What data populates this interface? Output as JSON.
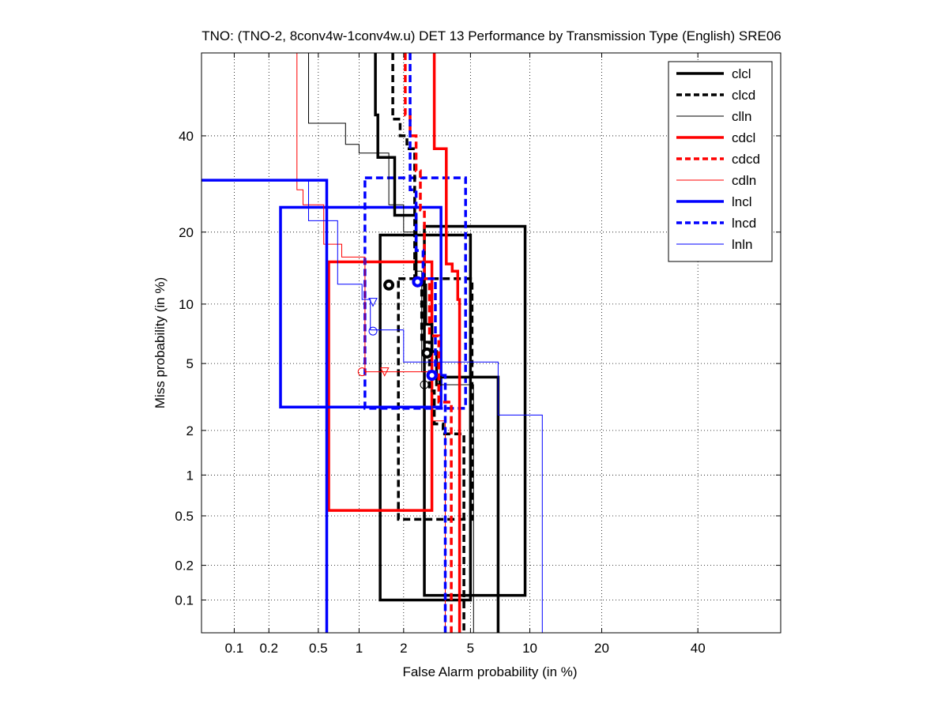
{
  "chart_data": {
    "type": "line",
    "title": "TNO: (TNO-2, 8conv4w-1conv4w.u) DET 13 Performance by Transmission Type (English) SRE06",
    "xlabel": "False Alarm probability (in %)",
    "ylabel": "Miss probability (in %)",
    "scale": "normal-deviate (probit)",
    "xlim": [
      0.05,
      60
    ],
    "ylim": [
      0.05,
      60
    ],
    "x_ticks": [
      0.1,
      0.2,
      0.5,
      1,
      2,
      5,
      10,
      20,
      40
    ],
    "x_tick_labels": [
      "0.1",
      "0.2",
      "0.5",
      "1",
      "2",
      "5",
      "10",
      "20",
      "40"
    ],
    "y_ticks": [
      0.1,
      0.2,
      0.5,
      1,
      2,
      5,
      10,
      20,
      40
    ],
    "y_tick_labels": [
      "0.1",
      "0.2",
      "0.5",
      "1",
      "2",
      "5",
      "10",
      "20",
      "40"
    ],
    "grid": true,
    "legend_position": "top-right",
    "series": [
      {
        "name": "clcl",
        "color": "#000000",
        "style": "solid",
        "width": 3.5,
        "x": [
          1.3,
          1.3,
          1.35,
          1.35,
          1.75,
          1.75,
          2.4,
          2.4,
          2.75,
          2.75,
          3.0,
          3.0,
          3.2,
          3.2,
          3.35,
          3.35,
          7.0,
          7.0
        ],
        "y": [
          60,
          45,
          45,
          35,
          35,
          23,
          23,
          12.2,
          12.2,
          8.0,
          8.0,
          5.8,
          5.8,
          3.8,
          3.8,
          4.2,
          4.2,
          0.05
        ],
        "marker_kind": "circle-filled",
        "marker": {
          "x": 1.6,
          "y": 12.2
        },
        "marker2": {
          "x": 2.8,
          "y": 5.7
        }
      },
      {
        "name": "clcd",
        "color": "#000000",
        "style": "dashed",
        "width": 3.5,
        "x": [
          1.7,
          1.7,
          1.9,
          1.9,
          2.1,
          2.1,
          2.35,
          2.35,
          2.6,
          2.6,
          2.9,
          2.9,
          3.1,
          3.1,
          3.5,
          3.5,
          4.6,
          4.6
        ],
        "y": [
          60,
          44,
          44,
          40,
          40,
          37,
          37,
          13,
          13,
          6.5,
          6.5,
          3.5,
          3.5,
          2.2,
          2.2,
          1.9,
          1.9,
          0.05
        ],
        "marker_kind": "circle-filled",
        "marker": {
          "x": 2.8,
          "y": 5.7
        }
      },
      {
        "name": "clln",
        "color": "#000000",
        "style": "solid",
        "width": 1,
        "x": [
          0.42,
          0.42,
          0.8,
          0.8,
          1.0,
          1.0,
          1.6,
          1.6,
          2.0,
          2.0,
          2.4,
          2.4,
          2.6,
          2.6,
          3.2,
          3.2,
          5.2,
          5.2
        ],
        "y": [
          60,
          43,
          43,
          38,
          38,
          36,
          36,
          25,
          25,
          20,
          20,
          14,
          14,
          4.5,
          4.5,
          3.8,
          3.8,
          0.05
        ],
        "marker_kind": "circle-open",
        "marker": {
          "x": 2.7,
          "y": 3.8
        }
      },
      {
        "name": "cdcl",
        "color": "#ff0000",
        "style": "solid",
        "width": 3.5,
        "x": [
          3.1,
          3.1,
          3.65,
          3.65,
          3.95,
          3.95,
          4.25,
          4.25,
          4.35,
          4.35
        ],
        "y": [
          60,
          37,
          37,
          15,
          15,
          14,
          14,
          10.5,
          10.5,
          0.05
        ],
        "marker_kind": "circle-filled",
        "marker": {
          "x": 3.0,
          "y": 4.3
        }
      },
      {
        "name": "cdcd",
        "color": "#ff0000",
        "style": "dashed",
        "width": 3.5,
        "x": [
          2.05,
          2.05,
          2.2,
          2.2,
          2.4,
          2.4,
          2.55,
          2.55,
          2.7,
          2.7,
          2.9,
          2.9,
          3.3,
          3.3,
          3.9,
          3.9
        ],
        "y": [
          60,
          45,
          45,
          40,
          40,
          32,
          32,
          24,
          24,
          13,
          13,
          7.0,
          7.0,
          3.0,
          3.0,
          0.05
        ],
        "marker_kind": "circle-filled",
        "marker": {
          "x": 2.45,
          "y": 12.6
        }
      },
      {
        "name": "cdln",
        "color": "#ff0000",
        "style": "solid",
        "width": 1,
        "x": [
          0.34,
          0.34,
          0.38,
          0.38,
          0.55,
          0.55,
          0.75,
          0.75,
          1.1,
          1.1,
          3.0,
          3.0,
          3.6,
          3.6
        ],
        "y": [
          60,
          28,
          28,
          25,
          25,
          18,
          18,
          16,
          16,
          4.5,
          4.5,
          2.3,
          2.3,
          0.05
        ],
        "marker_kind": "circle-open",
        "marker": {
          "x": 1.05,
          "y": 4.5
        },
        "marker2_kind": "triangle-down",
        "marker2": {
          "x": 1.5,
          "y": 4.5
        }
      },
      {
        "name": "lncl",
        "color": "#0000ff",
        "style": "solid",
        "width": 3.5,
        "x": [
          0.01,
          0.58,
          0.58
        ],
        "y": [
          30,
          30,
          0.05
        ],
        "marker_kind": "circle-filled",
        "marker": {
          "x": 2.45,
          "y": 12.6
        }
      },
      {
        "name": "lncd",
        "color": "#0000ff",
        "style": "dashed",
        "width": 3.5,
        "x": [
          2.2,
          2.2,
          2.4,
          2.4,
          2.65,
          2.65,
          3.15,
          3.15,
          3.6,
          3.6
        ],
        "y": [
          60,
          28,
          28,
          17,
          17,
          13,
          13,
          4.3,
          4.3,
          0.05
        ],
        "marker_kind": "circle-filled",
        "marker": {
          "x": 3.0,
          "y": 4.3
        }
      },
      {
        "name": "lnln",
        "color": "#0000ff",
        "style": "solid",
        "width": 1,
        "x": [
          0.42,
          0.42,
          0.7,
          0.7,
          1.05,
          1.05,
          1.2,
          1.2,
          1.2,
          2.0,
          2.0,
          7.0,
          7.0,
          11.4,
          11.4
        ],
        "y": [
          30,
          22,
          22,
          12.3,
          12.3,
          10.5,
          10.5,
          7.5,
          7.5,
          7.5,
          5.1,
          5.1,
          2.5,
          2.5,
          0.05
        ],
        "marker_kind": "circle-open",
        "marker": {
          "x": 1.25,
          "y": 7.4
        },
        "marker2_kind": "triangle-down",
        "marker2": {
          "x": 1.25,
          "y": 10.2
        }
      }
    ],
    "confidence_boxes": [
      {
        "series": "clcl",
        "color": "#000000",
        "style": "solid",
        "width": 3.5,
        "x0": 1.4,
        "x1": 5.0,
        "y0": 0.1,
        "y1": 19.5
      },
      {
        "series": "clcl",
        "color": "#000000",
        "style": "solid",
        "width": 3.5,
        "x0": 2.7,
        "x1": 9.5,
        "y0": 0.11,
        "y1": 21
      },
      {
        "series": "clcd",
        "color": "#000000",
        "style": "dashed",
        "width": 3.5,
        "x0": 1.85,
        "x1": 5.1,
        "y0": 0.47,
        "y1": 13
      },
      {
        "series": "cdcl",
        "color": "#ff0000",
        "style": "solid",
        "width": 3.5,
        "x0": 0.6,
        "x1": 3.0,
        "y0": 0.55,
        "y1": 15.3
      },
      {
        "series": "lncl",
        "color": "#0000ff",
        "style": "solid",
        "width": 3.5,
        "x0": 0.25,
        "x1": 3.4,
        "y0": 2.8,
        "y1": 24.5
      },
      {
        "series": "lncd",
        "color": "#0000ff",
        "style": "dashed",
        "width": 3.5,
        "x0": 1.1,
        "x1": 4.7,
        "y0": 2.75,
        "y1": 30.5
      }
    ]
  }
}
